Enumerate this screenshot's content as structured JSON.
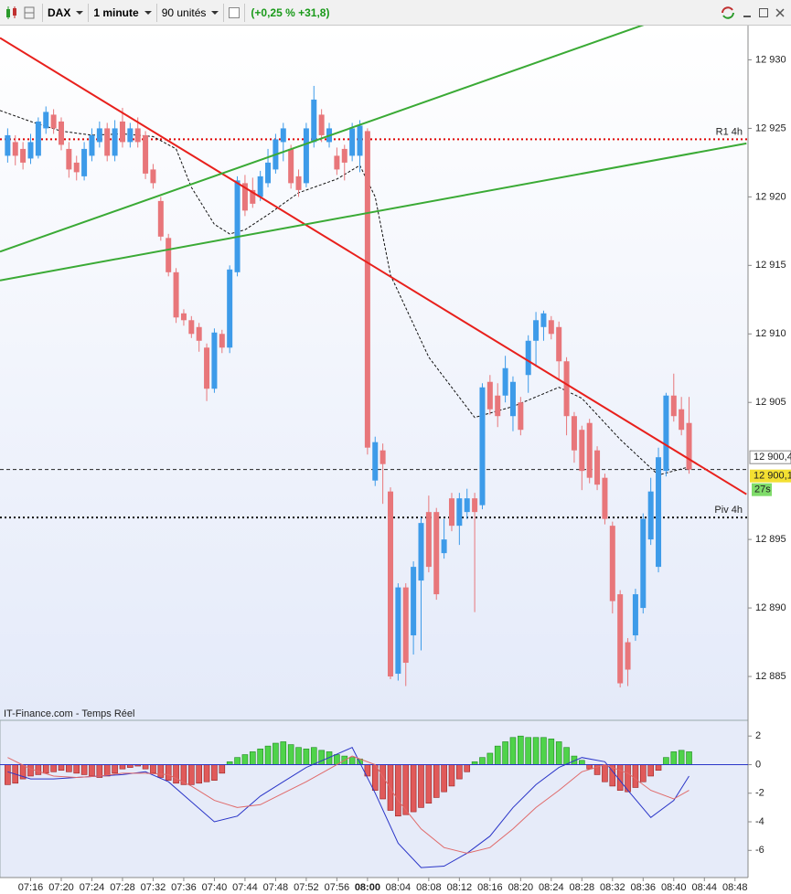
{
  "toolbar": {
    "symbol": "DAX",
    "interval": "1 minute",
    "units": "90 unités",
    "change": "(+0,25 % +31,8)"
  },
  "chart_data": [
    {
      "type": "candlestick",
      "x": [
        433,
        434,
        435,
        436,
        437,
        438,
        439,
        440,
        441,
        442,
        443,
        444,
        445,
        446,
        447,
        448,
        449,
        450,
        451,
        452,
        453,
        454,
        455,
        456,
        457,
        458,
        459,
        460,
        461,
        462,
        463,
        464,
        465,
        466,
        467,
        468,
        469,
        470,
        471,
        472,
        473,
        474,
        475,
        476,
        477,
        478,
        479,
        480,
        481,
        482,
        483,
        484,
        485,
        486,
        487,
        488,
        489,
        490,
        491,
        492,
        493,
        494,
        495,
        496,
        497,
        498,
        499,
        500,
        501,
        502,
        503,
        504,
        505,
        506,
        507,
        508,
        509,
        510,
        511,
        512,
        513,
        514,
        515,
        516,
        517,
        518,
        519,
        520,
        521,
        522
      ],
      "open": [
        12923,
        12924,
        12923.5,
        12922.8,
        12923,
        12925,
        12926,
        12925.5,
        12923.5,
        12922.5,
        12921.5,
        12923,
        12924,
        12925,
        12923,
        12925.5,
        12924,
        12925,
        12924.5,
        12922,
        12919.7,
        12917,
        12914.5,
        12911.5,
        12911,
        12910.5,
        12909,
        12906,
        12910,
        12909,
        12914.5,
        12921,
        12920.5,
        12920,
        12921,
        12922,
        12924,
        12923.5,
        12921.5,
        12921,
        12924,
        12926,
        12924,
        12923,
        12923.5,
        12923,
        12923,
        12924.8,
        12899.3,
        12901.5,
        12898.5,
        12885.2,
        12891.5,
        12888,
        12892,
        12897,
        12897,
        12894,
        12898,
        12896,
        12897,
        12898,
        12897.5,
        12906.5,
        12905.5,
        12905.5,
        12904,
        12905,
        12907,
        12909.5,
        12910.5,
        12911,
        12910.5,
        12908,
        12904,
        12903,
        12903.5,
        12901.5,
        12899.5,
        12896,
        12891,
        12887.5,
        12888,
        12890,
        12895,
        12893,
        12900,
        12905.5,
        12904.5,
        12903.5
      ],
      "high": [
        12925,
        12924.5,
        12924,
        12924.6,
        12925.8,
        12926.6,
        12926.4,
        12925.8,
        12924,
        12923,
        12924,
        12925,
        12925.5,
        12925.4,
        12925.6,
        12926.5,
        12925.4,
        12925.8,
        12924.8,
        12922.4,
        12920,
        12917.3,
        12914.8,
        12911.8,
        12911.3,
        12910.8,
        12909.3,
        12910.4,
        12910.3,
        12915,
        12921.5,
        12921.6,
        12921.4,
        12921.9,
        12923.5,
        12924.6,
        12925.4,
        12923.8,
        12922,
        12925.4,
        12928.1,
        12926.4,
        12925.4,
        12923.6,
        12923.8,
        12925.4,
        12925.6,
        12925,
        12902.5,
        12902,
        12898.8,
        12891.8,
        12891.8,
        12893.4,
        12896.6,
        12898.2,
        12897.3,
        12896.5,
        12898.4,
        12898.4,
        12898.7,
        12898.4,
        12906.4,
        12907,
        12906.4,
        12908.4,
        12906.9,
        12905.4,
        12909.9,
        12911.6,
        12911.7,
        12911.3,
        12910.9,
        12908.3,
        12904.3,
        12903.3,
        12903.8,
        12901.8,
        12899.8,
        12896.3,
        12891.3,
        12887.8,
        12891.4,
        12896.9,
        12899.5,
        12901.7,
        12905.7,
        12907.1,
        12905.4,
        12905.4
      ],
      "low": [
        12922.5,
        12922.3,
        12922,
        12922.4,
        12922.8,
        12924.6,
        12924.6,
        12923.4,
        12921.4,
        12921.2,
        12921.2,
        12922.6,
        12923.6,
        12922.6,
        12922.6,
        12923.6,
        12923.6,
        12923.6,
        12921.3,
        12920.6,
        12916.8,
        12914.2,
        12910.8,
        12910.6,
        12909.7,
        12908.7,
        12905.1,
        12905.7,
        12908.6,
        12908.6,
        12914.2,
        12918.6,
        12919.2,
        12919.7,
        12920.7,
        12921.7,
        12922.6,
        12920.6,
        12920,
        12920.7,
        12923.6,
        12924,
        12923.6,
        12921.6,
        12921.2,
        12922.6,
        12921.8,
        12901.2,
        12898.9,
        12897.6,
        12884.8,
        12884.7,
        12884.3,
        12886.6,
        12886.9,
        12892.6,
        12890.6,
        12893.6,
        12895.6,
        12894.6,
        12896.5,
        12889.7,
        12897.2,
        12904.1,
        12903.2,
        12905,
        12902.9,
        12902.6,
        12905.7,
        12907.6,
        12909.5,
        12909.6,
        12906.6,
        12902.6,
        12900.6,
        12898.6,
        12899.1,
        12898.6,
        12896.1,
        12889.6,
        12884.2,
        12884.3,
        12887.6,
        12889.6,
        12894.6,
        12892.6,
        12899.6,
        12903.6,
        12902.6,
        12899.8
      ],
      "close": [
        12924.5,
        12923,
        12922.5,
        12924,
        12925.5,
        12926.2,
        12925,
        12923.8,
        12922,
        12921.8,
        12923.5,
        12924.5,
        12925,
        12923,
        12925,
        12924,
        12925,
        12924,
        12921.7,
        12921,
        12917.1,
        12914.5,
        12911.2,
        12911,
        12910,
        12909.5,
        12906,
        12910.1,
        12909,
        12914.7,
        12921.2,
        12919,
        12919.5,
        12921.5,
        12922.5,
        12924.2,
        12925,
        12921,
        12920.5,
        12925,
        12927.1,
        12924.5,
        12925,
        12922,
        12922.5,
        12925,
        12925.2,
        12901.7,
        12902.1,
        12900.5,
        12885,
        12891.5,
        12886,
        12893,
        12896.2,
        12893,
        12891,
        12895,
        12896,
        12898,
        12898,
        12897,
        12906.1,
        12904.5,
        12904,
        12907.5,
        12906.5,
        12903,
        12909.5,
        12911,
        12911.5,
        12910,
        12908,
        12904,
        12901.5,
        12900,
        12899.5,
        12899,
        12896.5,
        12890.5,
        12884.5,
        12885.5,
        12891,
        12896.5,
        12898.5,
        12901,
        12905.5,
        12904,
        12903,
        12900.1
      ],
      "up_color": "#3d9be9",
      "down_color": "#e8767a",
      "xlim": [
        432,
        529.7
      ],
      "ylim": [
        12881.8,
        12932.5
      ],
      "yticks": [
        {
          "value": 12885,
          "label": "12 885"
        },
        {
          "value": 12890,
          "label": "12 890"
        },
        {
          "value": 12895,
          "label": "12 895"
        },
        {
          "value": 12905,
          "label": "12 905"
        },
        {
          "value": 12910,
          "label": "12 910"
        },
        {
          "value": 12915,
          "label": "12 915"
        },
        {
          "value": 12920,
          "label": "12 920"
        },
        {
          "value": 12925,
          "label": "12 925"
        },
        {
          "value": 12930,
          "label": "12 930"
        }
      ],
      "moving_average": {
        "color": "#111111",
        "x": [
          432,
          436,
          440,
          444,
          448,
          452,
          455,
          457,
          460,
          462,
          464,
          467,
          471,
          476,
          479,
          481,
          483,
          488,
          494,
          499,
          505,
          508,
          513,
          518,
          522
        ],
        "values": [
          12926.3,
          12925.5,
          12924.8,
          12924.5,
          12924.6,
          12924.4,
          12923.5,
          12920.7,
          12918.0,
          12917.3,
          12917.6,
          12918.7,
          12920.3,
          12921.3,
          12922.3,
          12920.0,
          12914.3,
          12908.3,
          12903.9,
          12904.7,
          12906.1,
          12905.3,
          12902.3,
          12899.7,
          12900.3
        ]
      },
      "trend_lines": [
        {
          "color": "#e8201c",
          "x": [
            432,
            529.5
          ],
          "values": [
            12931.6,
            12898.3
          ]
        },
        {
          "color": "#3aaa35",
          "x": [
            432,
            516.8
          ],
          "values": [
            12916,
            12932.7
          ]
        },
        {
          "color": "#3aaa35",
          "x": [
            432,
            529.5
          ],
          "values": [
            12913.9,
            12923.9
          ]
        }
      ],
      "levels": [
        {
          "name": "R1 4h",
          "value": 12924.2,
          "color": "#e00000"
        },
        {
          "name": "Piv 4h",
          "value": 12896.6,
          "color": "#111111"
        }
      ],
      "bid_price": {
        "value": 12900.4,
        "label": "12 900,4"
      },
      "last_price": {
        "value": 12900.1,
        "label": "12 900,1"
      },
      "countdown": "27s",
      "watermark": "IT-Finance.com - Temps Réel"
    },
    {
      "type": "macd",
      "x": [
        433,
        434,
        435,
        436,
        437,
        438,
        439,
        440,
        441,
        442,
        443,
        444,
        445,
        446,
        447,
        448,
        449,
        450,
        451,
        452,
        453,
        454,
        455,
        456,
        457,
        458,
        459,
        460,
        461,
        462,
        463,
        464,
        465,
        466,
        467,
        468,
        469,
        470,
        471,
        472,
        473,
        474,
        475,
        476,
        477,
        478,
        479,
        480,
        481,
        482,
        483,
        484,
        485,
        486,
        487,
        488,
        489,
        490,
        491,
        492,
        493,
        494,
        495,
        496,
        497,
        498,
        499,
        500,
        501,
        502,
        503,
        504,
        505,
        506,
        507,
        508,
        509,
        510,
        511,
        512,
        513,
        514,
        515,
        516,
        517,
        518,
        519,
        520,
        521,
        522
      ],
      "histogram": [
        -1.4,
        -1.3,
        -1.0,
        -0.8,
        -0.7,
        -0.6,
        -0.5,
        -0.4,
        -0.5,
        -0.6,
        -0.7,
        -0.8,
        -0.9,
        -0.8,
        -0.6,
        -0.3,
        -0.2,
        -0.1,
        -0.3,
        -0.6,
        -0.9,
        -1.1,
        -1.3,
        -1.4,
        -1.4,
        -1.3,
        -1.2,
        -1.1,
        -0.6,
        0.2,
        0.5,
        0.7,
        0.9,
        1.1,
        1.3,
        1.5,
        1.6,
        1.4,
        1.2,
        1.1,
        1.2,
        1.0,
        0.9,
        0.7,
        0.6,
        0.5,
        0.4,
        -0.8,
        -1.8,
        -2.4,
        -3.2,
        -3.6,
        -3.5,
        -3.3,
        -3.0,
        -2.7,
        -2.3,
        -1.9,
        -1.5,
        -1.0,
        -0.5,
        0.2,
        0.5,
        0.8,
        1.3,
        1.6,
        1.9,
        2.0,
        1.9,
        1.9,
        1.9,
        1.8,
        1.6,
        1.2,
        0.6,
        0.3,
        -0.3,
        -0.7,
        -1.2,
        -1.5,
        -1.8,
        -1.9,
        -1.6,
        -1.2,
        -0.8,
        -0.4,
        0.5,
        0.9,
        1.0,
        0.9
      ],
      "up_color": "#4fd34a",
      "down_color": "#e05a5a",
      "lines": [
        {
          "color": "#2a35c8",
          "x": [
            433,
            436,
            439,
            442,
            445,
            448,
            451,
            454,
            457,
            460,
            463,
            466,
            469,
            472,
            475,
            478,
            481,
            484,
            487,
            490,
            493,
            496,
            499,
            502,
            505,
            508,
            511,
            514,
            517,
            520,
            522
          ],
          "values": [
            -0.5,
            -1.0,
            -1.0,
            -0.9,
            -0.8,
            -0.7,
            -0.5,
            -1.2,
            -2.6,
            -4.0,
            -3.6,
            -2.2,
            -1.2,
            -0.2,
            0.5,
            1.2,
            -2.0,
            -5.5,
            -7.2,
            -7.1,
            -6.2,
            -5.0,
            -3.0,
            -1.4,
            -0.2,
            0.5,
            0.2,
            -1.8,
            -3.7,
            -2.5,
            -0.8
          ]
        },
        {
          "color": "#e06a6a",
          "x": [
            433,
            436,
            439,
            442,
            445,
            448,
            451,
            454,
            457,
            460,
            463,
            466,
            469,
            472,
            475,
            478,
            481,
            484,
            487,
            490,
            493,
            496,
            499,
            502,
            505,
            508,
            511,
            514,
            517,
            520,
            522
          ],
          "values": [
            0.5,
            -0.3,
            -0.8,
            -0.9,
            -0.8,
            -0.6,
            -0.6,
            -0.7,
            -1.5,
            -2.5,
            -3.0,
            -2.8,
            -2.0,
            -1.2,
            -0.3,
            0.6,
            0.0,
            -2.5,
            -4.5,
            -5.8,
            -6.2,
            -5.8,
            -4.5,
            -3.0,
            -1.8,
            -0.5,
            0.0,
            -0.6,
            -1.8,
            -2.4,
            -1.8
          ]
        }
      ],
      "zero_line_color": "#2a35c8",
      "xlim": [
        432,
        529.7
      ],
      "ylim": [
        -7.9,
        3.1
      ],
      "yticks": [
        -6,
        -4,
        -2,
        0,
        2
      ],
      "xticks": [
        {
          "value": 436,
          "label": "07:16"
        },
        {
          "value": 440,
          "label": "07:20"
        },
        {
          "value": 444,
          "label": "07:24"
        },
        {
          "value": 448,
          "label": "07:28"
        },
        {
          "value": 452,
          "label": "07:32"
        },
        {
          "value": 456,
          "label": "07:36"
        },
        {
          "value": 460,
          "label": "07:40"
        },
        {
          "value": 464,
          "label": "07:44"
        },
        {
          "value": 468,
          "label": "07:48"
        },
        {
          "value": 472,
          "label": "07:52"
        },
        {
          "value": 476,
          "label": "07:56"
        },
        {
          "value": 480,
          "label": "08:00"
        },
        {
          "value": 484,
          "label": "08:04"
        },
        {
          "value": 488,
          "label": "08:08"
        },
        {
          "value": 492,
          "label": "08:12"
        },
        {
          "value": 496,
          "label": "08:16"
        },
        {
          "value": 500,
          "label": "08:20"
        },
        {
          "value": 504,
          "label": "08:24"
        },
        {
          "value": 508,
          "label": "08:28"
        },
        {
          "value": 512,
          "label": "08:32"
        },
        {
          "value": 516,
          "label": "08:36"
        },
        {
          "value": 520,
          "label": "08:40"
        },
        {
          "value": 524,
          "label": "08:44"
        },
        {
          "value": 528,
          "label": "08:48"
        }
      ]
    }
  ]
}
